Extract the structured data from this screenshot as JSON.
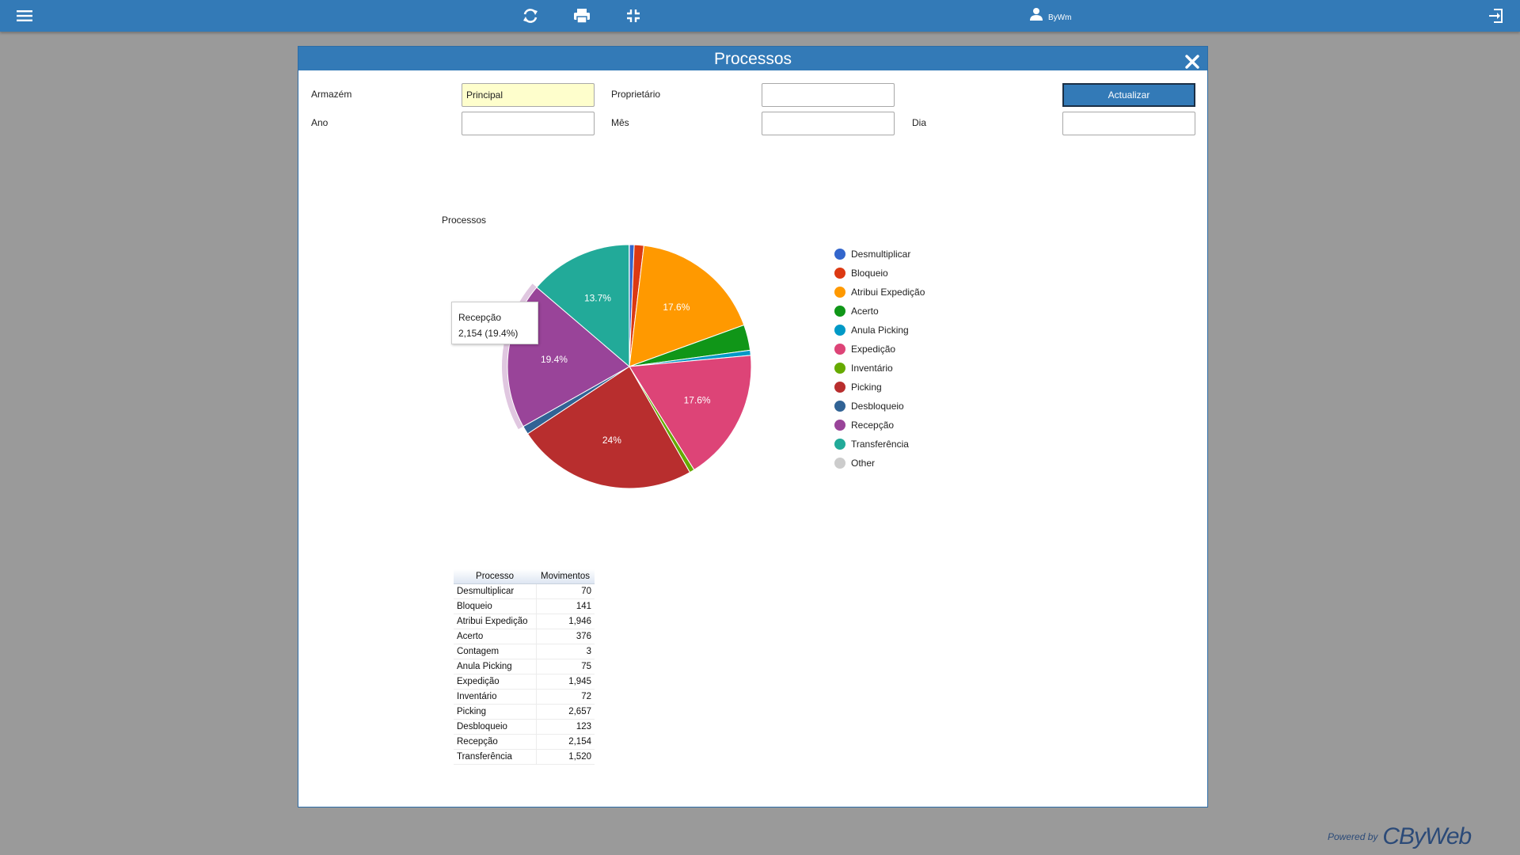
{
  "topbar": {
    "icons": [
      "menu-icon",
      "refresh-icon",
      "print-icon",
      "compress-icon",
      "user-icon",
      "logout-icon"
    ],
    "user_name": "ByWm"
  },
  "modal": {
    "title": "Processos",
    "filters": {
      "armazem_label": "Armazém",
      "armazem_value": "Principal",
      "proprietario_label": "Proprietário",
      "proprietario_value": "",
      "ano_label": "Ano",
      "ano_value": "",
      "mes_label": "Mês",
      "mes_value": "",
      "dia_label": "Dia",
      "dia_value": "",
      "update_label": "Actualizar"
    },
    "tooltip": {
      "title": "Recepção",
      "value": "2,154 (19.4%)"
    },
    "table": {
      "headers": [
        "Processo",
        "Movimentos"
      ],
      "rows": [
        [
          "Desmultiplicar",
          "70"
        ],
        [
          "Bloqueio",
          "141"
        ],
        [
          "Atribui Expedição",
          "1,946"
        ],
        [
          "Acerto",
          "376"
        ],
        [
          "Contagem",
          "3"
        ],
        [
          "Anula Picking",
          "75"
        ],
        [
          "Expedição",
          "1,945"
        ],
        [
          "Inventário",
          "72"
        ],
        [
          "Picking",
          "2,657"
        ],
        [
          "Desbloqueio",
          "123"
        ],
        [
          "Recepção",
          "2,154"
        ],
        [
          "Transferência",
          "1,520"
        ]
      ]
    }
  },
  "chart_data": {
    "type": "pie",
    "title": "Processos",
    "legend_position": "right",
    "categories": [
      "Desmultiplicar",
      "Bloqueio",
      "Atribui Expedição",
      "Acerto",
      "Anula Picking",
      "Expedição",
      "Inventário",
      "Picking",
      "Desbloqueio",
      "Recepção",
      "Transferência",
      "Other"
    ],
    "values": [
      70,
      141,
      1946,
      376,
      75,
      1945,
      72,
      2657,
      123,
      2154,
      1520,
      3
    ],
    "colors": [
      "#3366cc",
      "#dc3912",
      "#ff9900",
      "#109618",
      "#0099c6",
      "#dd4477",
      "#66aa00",
      "#b82e2e",
      "#316395",
      "#994499",
      "#22aa99",
      "#cccccc"
    ],
    "slice_labels": [
      {
        "category": "Atribui Expedição",
        "text": "17.6%"
      },
      {
        "category": "Expedição",
        "text": "17.6%"
      },
      {
        "category": "Picking",
        "text": "24%"
      },
      {
        "category": "Recepção",
        "text": "19.4%"
      },
      {
        "category": "Transferência",
        "text": "13.7%"
      }
    ],
    "highlighted": "Recepção"
  },
  "footer": {
    "powered_by": "Powered by",
    "brand": "CByWeb"
  }
}
